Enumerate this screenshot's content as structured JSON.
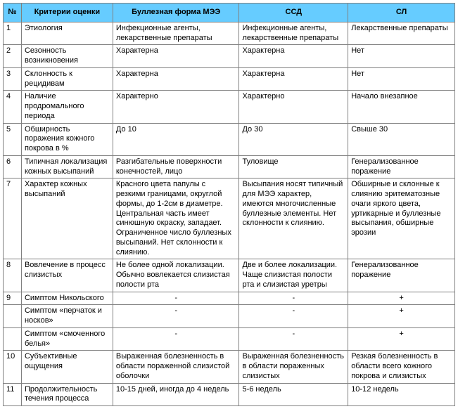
{
  "header_bg": "#66ccff",
  "columns": [
    "№",
    "Критерии оценки",
    "Буллезная форма МЭЭ",
    "ССД",
    "СЛ"
  ],
  "rows": [
    {
      "n": "1",
      "crit": "Этиология",
      "mee": "Инфекционные агенты, лекарственные препараты",
      "ssd": "Инфекционные агенты, лекарственные препараты",
      "sl": "Лекарственные препараты"
    },
    {
      "n": "2",
      "crit": "Сезонность возникновения",
      "mee": "Характерна",
      "ssd": "Характерна",
      "sl": "Нет"
    },
    {
      "n": "3",
      "crit": "Склонность к рецидивам",
      "mee": "Характерна",
      "ssd": "Характерна",
      "sl": "Нет"
    },
    {
      "n": "4",
      "crit": "Наличие продромального периода",
      "mee": "Характерно",
      "ssd": "Характерно",
      "sl": "Начало внезапное"
    },
    {
      "n": "5",
      "crit": "Обширность поражения кожного покрова в %",
      "mee": "До 10",
      "ssd": "До 30",
      "sl": "Свыше 30"
    },
    {
      "n": "6",
      "crit": "Типичная локализация кожных высыпаний",
      "mee": "Разгибательные поверхности конечностей, лицо",
      "ssd": "Туловище",
      "sl": "Генерализованное поражение"
    },
    {
      "n": "7",
      "crit": "Характер кожных высыпаний",
      "mee": "Красного цвета папулы с резкими границами, округлой формы, до 1-2см в диаметре. Центральная часть имеет синюшную окраску, западает. Ограниченное число буллезных высыпаний. Нет склонности к слиянию.",
      "ssd": "Высыпания носят типичный для МЭЭ характер, имеются многочисленные буллезные элементы. Нет склонности к слиянию.",
      "sl": "Обширные и склонные к слиянию эритематозные очаги яркого цвета, уртикарные и буллезные высыпания, обширные эрозии"
    },
    {
      "n": "8",
      "crit": "Вовлечение в процесс слизистых",
      "mee": "Не более одной локализации. Обычно вовлекается слизистая полости рта",
      "ssd": "Две и более локализации. Чаще слизистая полости рта и слизистая уретры",
      "sl": "Генерализованное поражение"
    },
    {
      "n": "9",
      "crit": "Симптом Никольского",
      "mee": "-",
      "ssd": "-",
      "sl": "+",
      "mee_center": true,
      "ssd_center": true,
      "sl_center": true
    },
    {
      "n": "",
      "crit": " Симптом «перчаток и носков»",
      "mee": "-",
      "ssd": "-",
      "sl": "+",
      "mee_center": true,
      "ssd_center": true,
      "sl_center": true
    },
    {
      "n": "",
      "crit": " Симптом «смоченного белья»",
      "mee": "-",
      "ssd": "-",
      "sl": "+",
      "mee_center": true,
      "ssd_center": true,
      "sl_center": true
    },
    {
      "n": "10",
      "crit": "Субъективные ощущения",
      "mee": "Выраженная болезненность в области пораженной слизистой оболочки",
      "ssd": "Выраженная болезненность в области пораженных слизистых",
      "sl": "Резкая болезненность в области всего кожного покрова и слизистых"
    },
    {
      "n": "11",
      "crit": "Продолжительность течения процесса",
      "mee": "10-15 дней, иногда до 4 недель",
      "ssd": "5-6 недель",
      "sl": "10-12 недель"
    }
  ]
}
